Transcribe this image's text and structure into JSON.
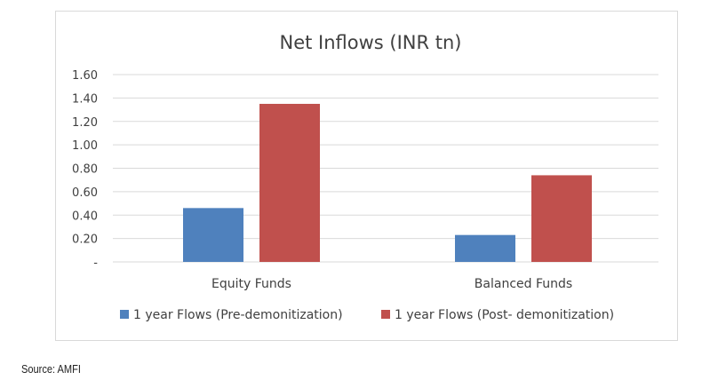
{
  "chart_data": {
    "type": "bar",
    "title": "Net Inflows (INR tn)",
    "categories": [
      "Equity Funds",
      "Balanced Funds"
    ],
    "series": [
      {
        "name": "1 year Flows (Pre-demonitization)",
        "color": "#4f81bd",
        "values": [
          0.46,
          0.23
        ]
      },
      {
        "name": "1 year Flows (Post- demonitization)",
        "color": "#c0504d",
        "values": [
          1.35,
          0.74
        ]
      }
    ],
    "yticks": [
      "-",
      "0.20",
      "0.40",
      "0.60",
      "0.80",
      "1.00",
      "1.20",
      "1.40",
      "1.60"
    ],
    "ylim": [
      0,
      1.6
    ],
    "grid": true,
    "legend_position": "bottom"
  },
  "source": "Source: AMFI"
}
